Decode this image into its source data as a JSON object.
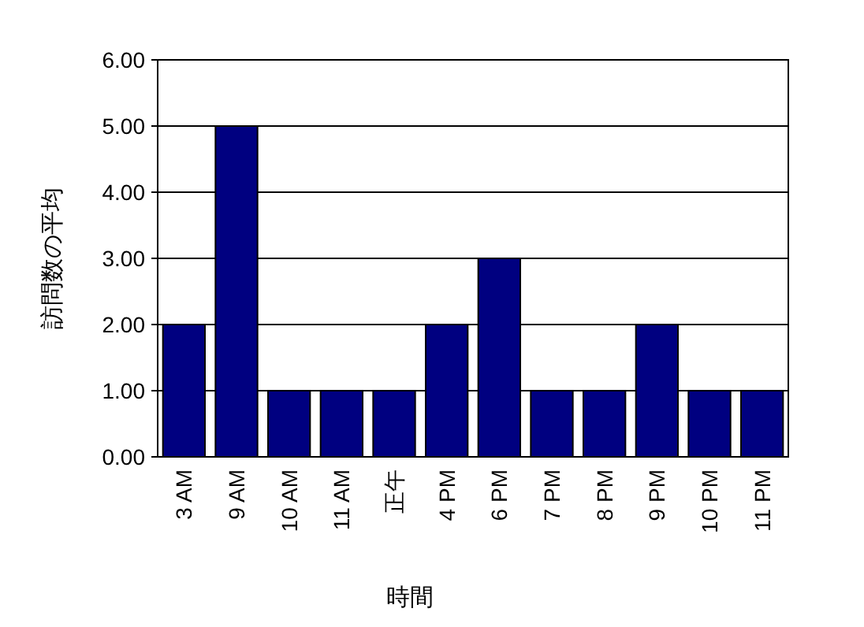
{
  "chart_data": {
    "type": "bar",
    "xlabel": "時間",
    "ylabel": "訪問数の平均",
    "categories": [
      "3 AM",
      "9 AM",
      "10 AM",
      "11 AM",
      "正午",
      "4 PM",
      "6 PM",
      "7 PM",
      "8 PM",
      "9 PM",
      "10 PM",
      "11 PM"
    ],
    "values": [
      2,
      5,
      1,
      1,
      1,
      2,
      3,
      1,
      1,
      2,
      1,
      1
    ],
    "color": "#000080",
    "ylim": [
      0,
      6
    ],
    "yticks": [
      {
        "value": 0,
        "label": "0.00"
      },
      {
        "value": 1,
        "label": "1.00"
      },
      {
        "value": 2,
        "label": "2.00"
      },
      {
        "value": 3,
        "label": "3.00"
      },
      {
        "value": 4,
        "label": "4.00"
      },
      {
        "value": 5,
        "label": "5.00"
      },
      {
        "value": 6,
        "label": "6.00"
      }
    ],
    "grid": "y"
  }
}
